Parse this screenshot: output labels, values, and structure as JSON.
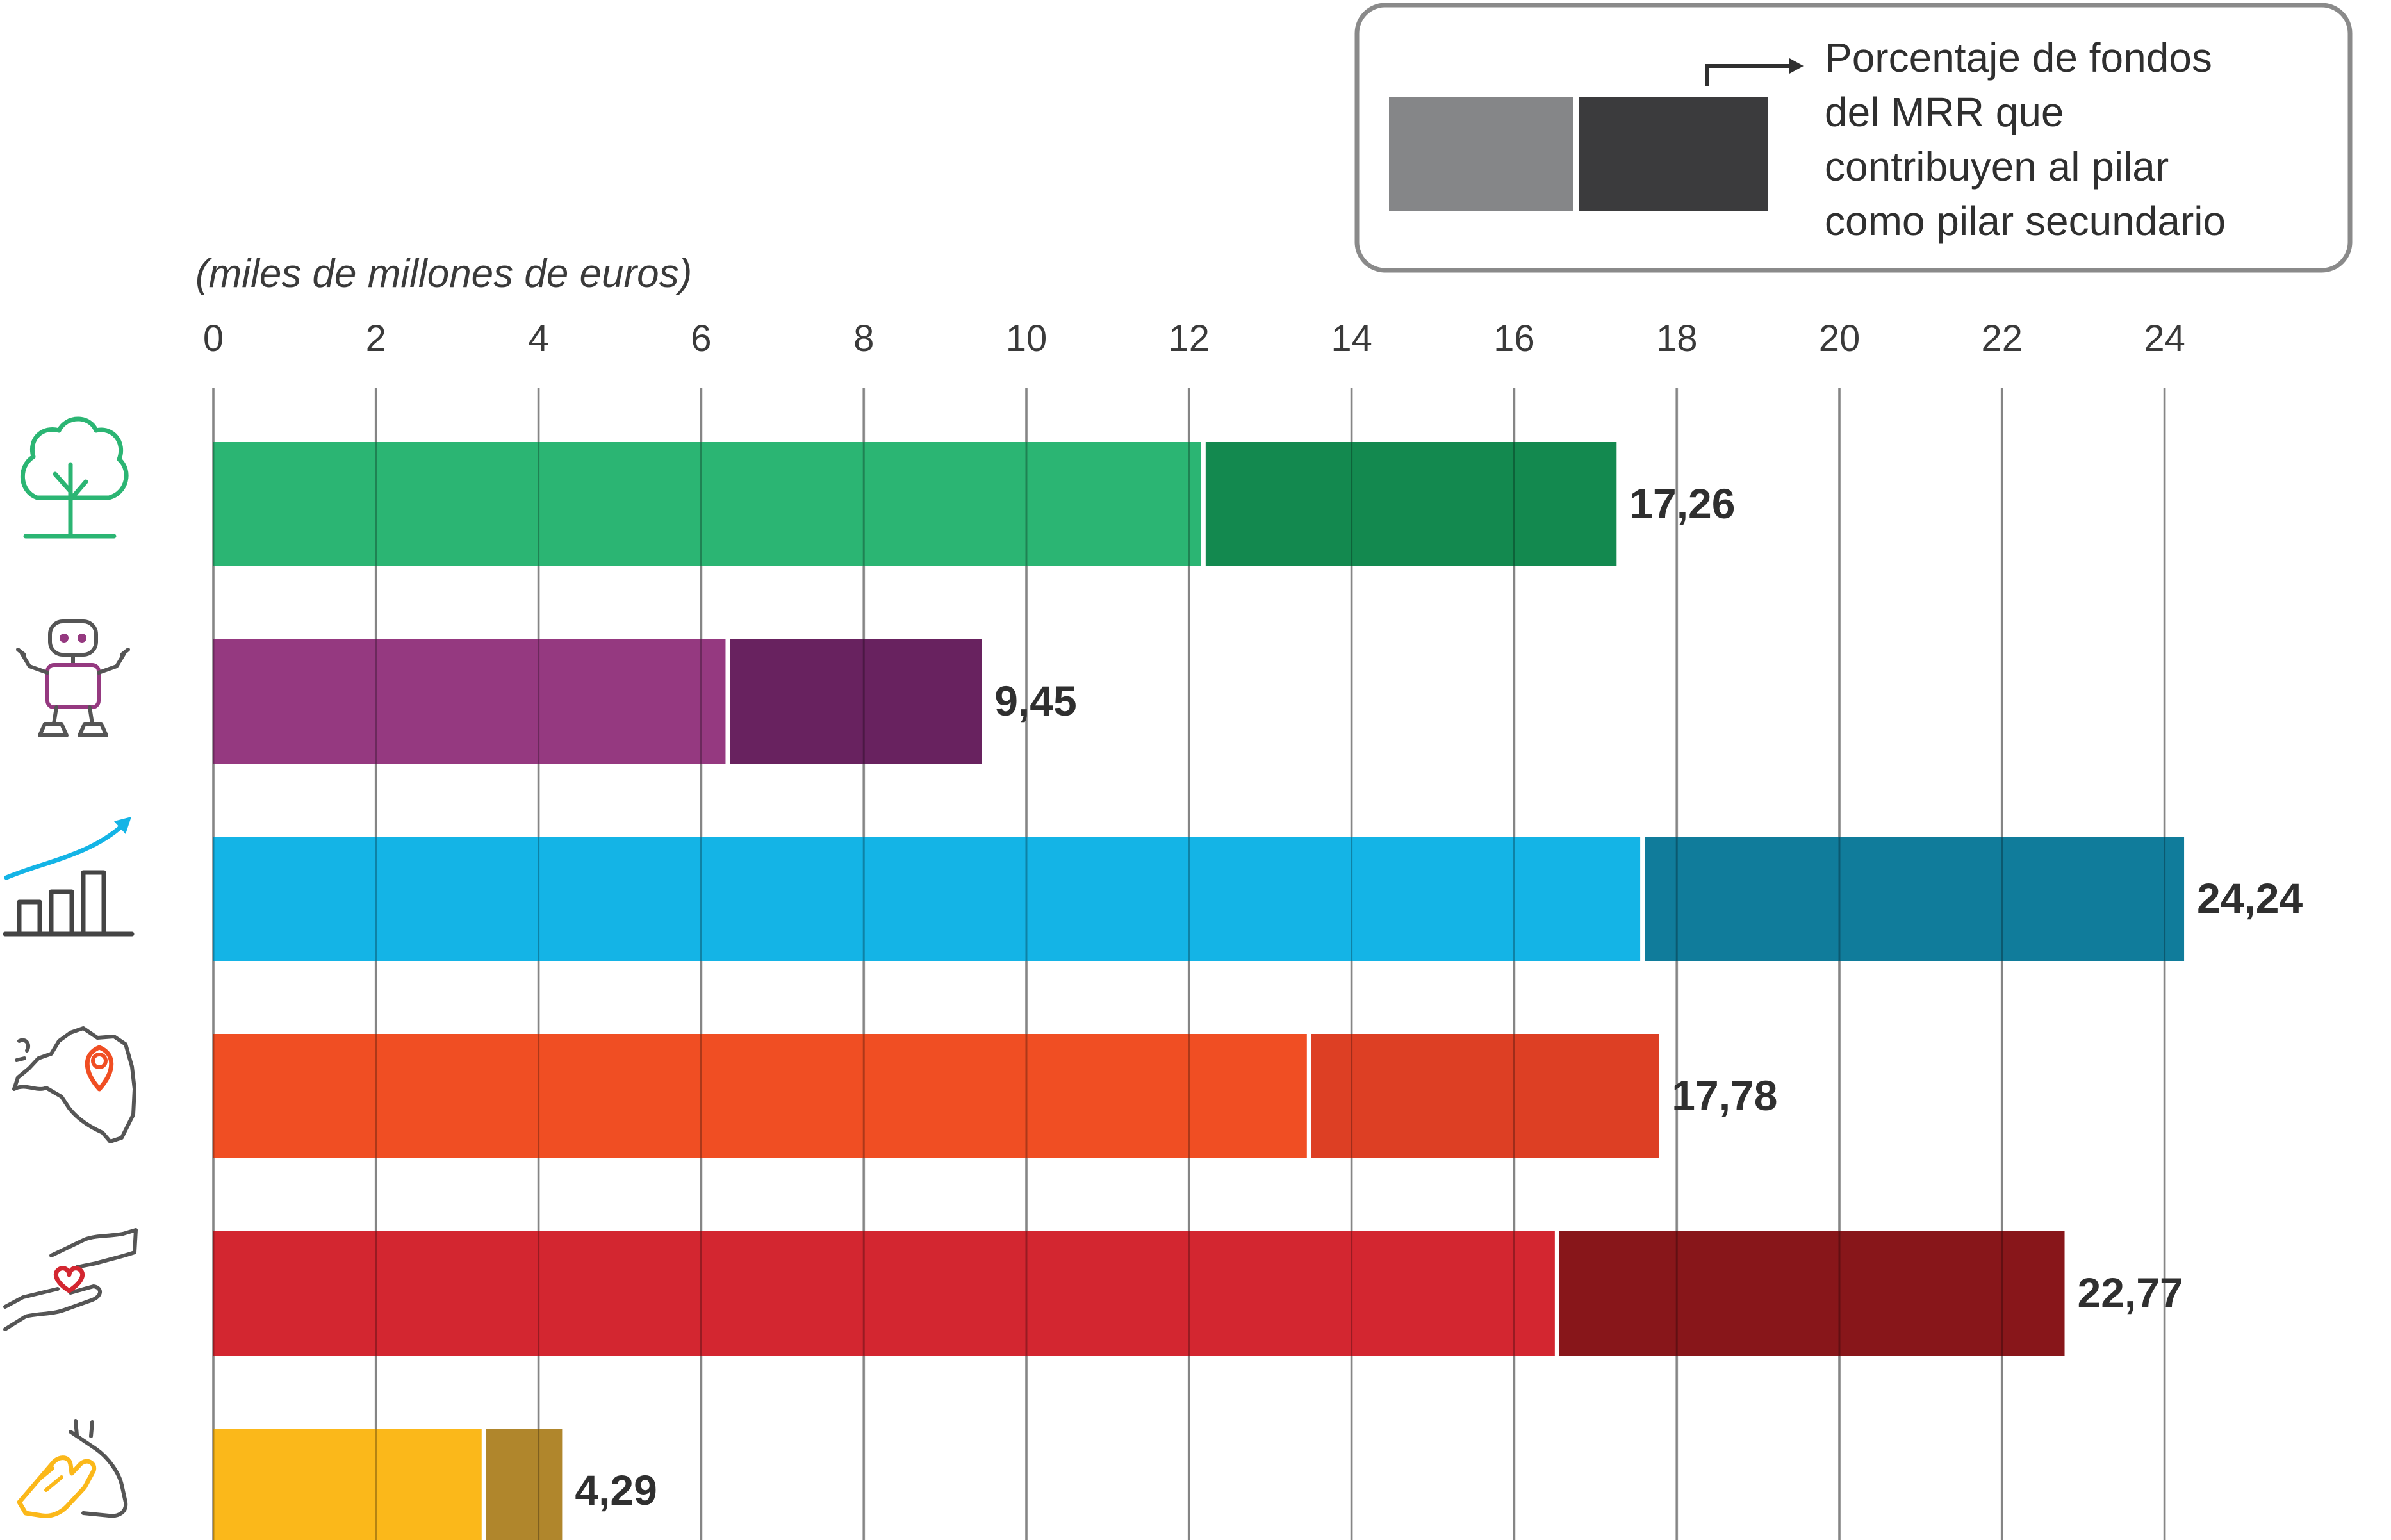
{
  "chart_data": {
    "type": "bar",
    "orientation": "horizontal",
    "stacked": true,
    "unit_label": "(miles de millones de euros)",
    "xlim": [
      0,
      25
    ],
    "x_ticks": [
      "0",
      "2",
      "4",
      "6",
      "8",
      "10",
      "12",
      "14",
      "16",
      "18",
      "20",
      "22",
      "24"
    ],
    "grid": true,
    "legend": {
      "placement": "top-right",
      "text_lines": [
        "Porcentaje de fondos",
        "del MRR que",
        "contribuyen al pilar",
        "como pilar secundario"
      ],
      "swatch_primary": "#858688",
      "swatch_secondary": "#3b3b3d"
    },
    "categories": [
      {
        "icon": "tree-icon",
        "primary": 12.15,
        "secondary": 5.11,
        "total": 17.26,
        "total_label": "17,26",
        "color_primary": "#2bb573",
        "color_secondary": "#13894f",
        "icon_color": "#2bb573"
      },
      {
        "icon": "robot-icon",
        "primary": 6.3,
        "secondary": 3.15,
        "total": 9.45,
        "total_label": "9,45",
        "color_primary": "#953980",
        "color_secondary": "#68225f",
        "icon_color": "#953980"
      },
      {
        "icon": "growth-chart-icon",
        "primary": 17.55,
        "secondary": 6.69,
        "total": 24.24,
        "total_label": "24,24",
        "color_primary": "#14b4e6",
        "color_secondary": "#107c9b",
        "icon_color": "#14b4e6"
      },
      {
        "icon": "europe-map-pin-icon",
        "primary": 13.45,
        "secondary": 4.33,
        "total": 17.78,
        "total_label": "17,78",
        "color_primary": "#f04e23",
        "color_secondary": "#dd3f24",
        "icon_color": "#f04e23"
      },
      {
        "icon": "hands-heart-icon",
        "primary": 16.5,
        "secondary": 6.27,
        "total": 22.77,
        "total_label": "22,77",
        "color_primary": "#d32630",
        "color_secondary": "#88161a",
        "icon_color": "#d32630"
      },
      {
        "icon": "clapping-hands-icon",
        "primary": 3.3,
        "secondary": 0.99,
        "total": 4.29,
        "total_label": "4,29",
        "color_primary": "#fbb81a",
        "color_secondary": "#b0862c",
        "icon_color": "#fbb81a"
      }
    ]
  }
}
